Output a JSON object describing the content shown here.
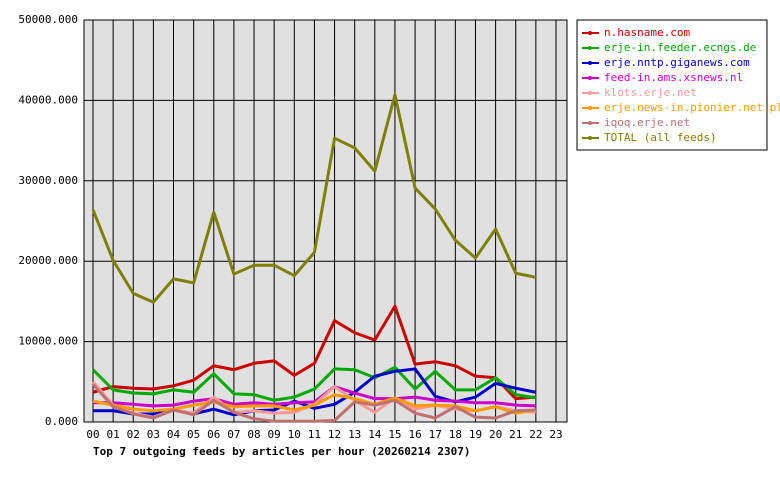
{
  "chart_data": {
    "type": "line",
    "title": "Top 7 outgoing feeds by articles per hour (20260214 2307)",
    "categories": [
      "00",
      "01",
      "02",
      "03",
      "04",
      "05",
      "06",
      "07",
      "08",
      "09",
      "10",
      "11",
      "12",
      "13",
      "14",
      "15",
      "16",
      "17",
      "18",
      "19",
      "20",
      "21",
      "22",
      "23"
    ],
    "series": [
      {
        "name": "n.hasname.com",
        "color": "#cc0000",
        "values": [
          3700,
          4400,
          4200,
          4100,
          4500,
          5200,
          7000,
          6500,
          7300,
          7600,
          5800,
          7300,
          12600,
          11100,
          10200,
          14400,
          7200,
          7500,
          7000,
          5700,
          5500,
          2900,
          3100,
          null
        ]
      },
      {
        "name": "erje-in.feeder.ecngs.de",
        "color": "#00aa00",
        "values": [
          6500,
          4000,
          3600,
          3500,
          4000,
          3700,
          6000,
          3500,
          3400,
          2700,
          3100,
          4100,
          6600,
          6500,
          5500,
          6800,
          4100,
          6300,
          4000,
          4000,
          5500,
          3400,
          3000,
          null
        ]
      },
      {
        "name": "erje.nntp.giganews.com",
        "color": "#0000cc",
        "values": [
          1400,
          1400,
          1000,
          1000,
          1500,
          1000,
          1600,
          900,
          1400,
          1500,
          2600,
          1700,
          2200,
          3700,
          5700,
          6300,
          6600,
          3200,
          2500,
          3100,
          4800,
          4200,
          3700,
          null
        ]
      },
      {
        "name": "feed-in.ams.xsnews.nl",
        "color": "#cc00cc",
        "values": [
          2400,
          2400,
          2200,
          2000,
          2100,
          2600,
          2900,
          2200,
          2400,
          2200,
          2400,
          2500,
          4400,
          3600,
          2900,
          2900,
          3100,
          2700,
          2600,
          2400,
          2400,
          2100,
          2000,
          null
        ]
      },
      {
        "name": "klots.erje.net",
        "color": "#ff9999",
        "values": [
          5000,
          2100,
          1100,
          600,
          1500,
          1100,
          3100,
          1200,
          1400,
          1100,
          1200,
          2200,
          4400,
          2700,
          1200,
          3000,
          1600,
          2100,
          1600,
          1400,
          1900,
          1400,
          1200,
          null
        ]
      },
      {
        "name": "erje.news-in.pionier.net.pl",
        "color": "#ff9900",
        "values": [
          2600,
          2100,
          1600,
          1400,
          1600,
          2100,
          2500,
          1900,
          2000,
          2000,
          1500,
          2100,
          3400,
          2900,
          2200,
          3000,
          2000,
          2100,
          2000,
          1400,
          1900,
          1100,
          1500,
          null
        ]
      },
      {
        "name": "iqoq.erje.net",
        "color": "#c07070",
        "values": [
          4700,
          1900,
          1000,
          500,
          1500,
          900,
          2700,
          1200,
          400,
          100,
          100,
          100,
          200,
          2500,
          2100,
          2700,
          1100,
          500,
          1900,
          600,
          500,
          1400,
          1500,
          null
        ]
      },
      {
        "name": "TOTAL (all feeds)",
        "color": "#808000",
        "values": [
          26400,
          20100,
          16000,
          14900,
          17800,
          17300,
          26100,
          18400,
          19500,
          19500,
          18200,
          21100,
          35300,
          34100,
          31200,
          40700,
          29100,
          26500,
          22600,
          20400,
          24000,
          18500,
          18000,
          null
        ]
      }
    ],
    "ylim": [
      0,
      50000
    ],
    "yticks": [
      {
        "value": 0,
        "label": "0.000"
      },
      {
        "value": 10000,
        "label": "10000.000"
      },
      {
        "value": 20000,
        "label": "20000.000"
      },
      {
        "value": 30000,
        "label": "30000.000"
      },
      {
        "value": 40000,
        "label": "40000.000"
      },
      {
        "value": 50000,
        "label": "50000.000"
      }
    ],
    "grid": true,
    "legend": "outside-right"
  }
}
